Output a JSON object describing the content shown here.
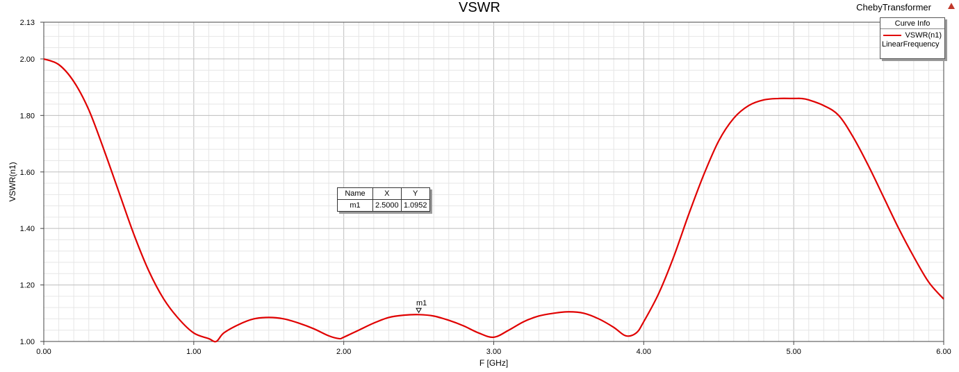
{
  "header": {
    "project": "ChebyTransformer"
  },
  "legend": {
    "title": "Curve Info",
    "entry": "VSWR(n1)",
    "subtitle": "LinearFrequency",
    "color": "#e00000"
  },
  "marker_table": {
    "headers": [
      "Name",
      "X",
      "Y"
    ],
    "row": [
      "m1",
      "2.5000",
      "1.0952"
    ]
  },
  "chart_data": {
    "type": "line",
    "title": "VSWR",
    "xlabel": "F [GHz]",
    "ylabel": "VSWR(n1)",
    "xlim": [
      0,
      6
    ],
    "ylim": [
      1.0,
      2.13
    ],
    "xticks": [
      "0.00",
      "1.00",
      "2.00",
      "3.00",
      "4.00",
      "5.00",
      "6.00"
    ],
    "yticks": [
      "1.00",
      "1.20",
      "1.40",
      "1.60",
      "1.80",
      "2.00",
      "2.13"
    ],
    "grid": true,
    "legend_position": "top-right",
    "series": [
      {
        "name": "VSWR(n1)",
        "color": "#e00000",
        "x": [
          0.0,
          0.1,
          0.2,
          0.3,
          0.4,
          0.5,
          0.6,
          0.7,
          0.8,
          0.9,
          1.0,
          1.1,
          1.15,
          1.2,
          1.3,
          1.4,
          1.5,
          1.6,
          1.7,
          1.8,
          1.9,
          1.97,
          2.0,
          2.1,
          2.2,
          2.3,
          2.4,
          2.5,
          2.6,
          2.7,
          2.8,
          2.9,
          3.0,
          3.1,
          3.2,
          3.3,
          3.4,
          3.5,
          3.6,
          3.7,
          3.8,
          3.88,
          3.95,
          4.0,
          4.1,
          4.2,
          4.3,
          4.4,
          4.5,
          4.6,
          4.7,
          4.8,
          4.9,
          5.0,
          5.05,
          5.1,
          5.2,
          5.3,
          5.4,
          5.5,
          5.6,
          5.7,
          5.8,
          5.9,
          6.0
        ],
        "y": [
          2.0,
          1.98,
          1.92,
          1.82,
          1.68,
          1.53,
          1.38,
          1.25,
          1.15,
          1.08,
          1.03,
          1.01,
          1.0,
          1.03,
          1.06,
          1.08,
          1.085,
          1.08,
          1.065,
          1.045,
          1.02,
          1.01,
          1.015,
          1.04,
          1.065,
          1.085,
          1.093,
          1.095,
          1.09,
          1.075,
          1.055,
          1.03,
          1.015,
          1.04,
          1.07,
          1.09,
          1.1,
          1.105,
          1.1,
          1.08,
          1.05,
          1.02,
          1.03,
          1.07,
          1.17,
          1.3,
          1.45,
          1.59,
          1.71,
          1.79,
          1.835,
          1.855,
          1.86,
          1.86,
          1.86,
          1.855,
          1.835,
          1.8,
          1.72,
          1.62,
          1.51,
          1.4,
          1.3,
          1.21,
          1.15
        ]
      }
    ],
    "markers": [
      {
        "name": "m1",
        "x": 2.5,
        "y": 1.0952
      }
    ]
  }
}
